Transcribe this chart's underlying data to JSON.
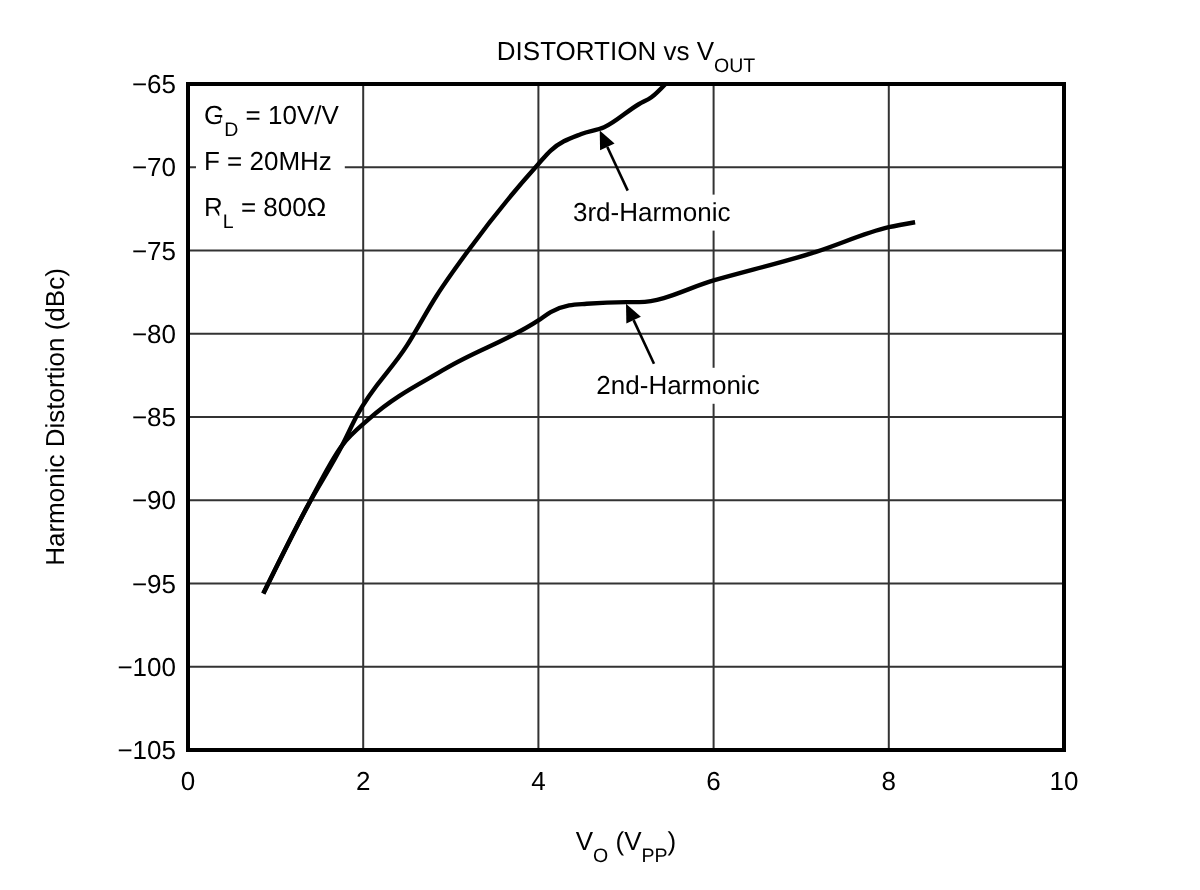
{
  "chart_data": {
    "type": "line",
    "title": "DISTORTION vs V$_{OUT}$",
    "xlabel": "V$_{O}$ (V$_{PP}$)",
    "ylabel": "Harmonic Distortion (dBc)",
    "xlim": [
      0,
      10
    ],
    "xticks": [
      0,
      2,
      4,
      6,
      8,
      10
    ],
    "ylim": [
      -105,
      -65
    ],
    "yticks": [
      {
        "value": -65,
        "label": "−65"
      },
      {
        "value": -70,
        "label": "−70"
      },
      {
        "value": -75,
        "label": "−75"
      },
      {
        "value": -80,
        "label": "−80"
      },
      {
        "value": -85,
        "label": "−85"
      },
      {
        "value": -90,
        "label": "−90"
      },
      {
        "value": -95,
        "label": "−95"
      },
      {
        "value": -100,
        "label": "−100"
      },
      {
        "value": -105,
        "label": "−105"
      }
    ],
    "grid": true,
    "marker": "none",
    "line_style": "solid",
    "series": [
      {
        "color": "#000000",
        "x": [
          0.86,
          1.36,
          1.76,
          1.93,
          2.5,
          2.84,
          3.2,
          4.0,
          4.14,
          4.49,
          4.75,
          5.15,
          5.29,
          5.45
        ],
        "values": [
          -95.6,
          -90.4,
          -86.7,
          -84.9,
          -80.7,
          -77.7,
          -75,
          -69.8,
          -69,
          -68,
          -67.6,
          -66.2,
          -65.8,
          -65
        ]
      },
      {
        "color": "#000000",
        "x": [
          0.86,
          1.36,
          1.76,
          2.07,
          2.94,
          4.0,
          4.14,
          4.35,
          4.55,
          5.0,
          5.15,
          6.0,
          7.16,
          8.0,
          8.3
        ],
        "values": [
          -95.6,
          -90.4,
          -86.7,
          -85.1,
          -82.1,
          -79.2,
          -78.7,
          -78.3,
          -78.2,
          -78.1,
          -78.1,
          -76.8,
          -75.1,
          -73.6,
          -73.3
        ]
      }
    ],
    "annotations": [
      "G$_{D}$ = 10V/V",
      "F = 20MHz",
      "R$_{L}$ = 800Ω",
      {
        "text": "3rd-Harmonic",
        "x": 4.7,
        "y": -67.8
      },
      {
        "text": "2nd-Harmonic",
        "x": 5.0,
        "y": -78.2
      }
    ]
  }
}
